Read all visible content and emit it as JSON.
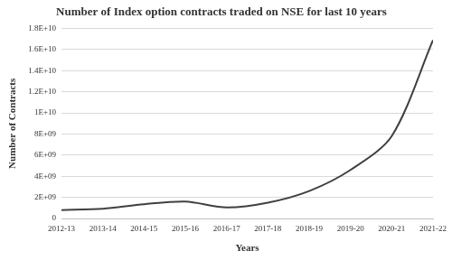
{
  "chart_data": {
    "type": "line",
    "title": "Number of Index option contracts traded on NSE for last 10 years",
    "x_label": "Years",
    "y_label": "Number of Contracts",
    "categories": [
      "2012-13",
      "2013-14",
      "2014-15",
      "2015-16",
      "2016-17",
      "2017-18",
      "2018-19",
      "2019-20",
      "2020-21",
      "2021-22"
    ],
    "values": [
      800000000,
      920000000,
      1350000000,
      1600000000,
      1050000000,
      1500000000,
      2600000000,
      4600000000,
      7800000000,
      16900000000
    ],
    "color": "#404040",
    "marker": "none",
    "line_style": "solid",
    "ylim": [
      0,
      18000000000
    ],
    "yticks": [
      0,
      {
        "value": 2000000000,
        "label": "2E+09"
      },
      {
        "value": 4000000000,
        "label": "4E+09"
      },
      {
        "value": 6000000000,
        "label": "6E+09"
      },
      {
        "value": 8000000000,
        "label": "8E+09"
      },
      {
        "value": 10000000000,
        "label": "1E+10"
      },
      {
        "value": 12000000000,
        "label": "1.2E+10"
      },
      {
        "value": 14000000000,
        "label": "1.4E+10"
      },
      {
        "value": 16000000000,
        "label": "1.6E+10"
      },
      {
        "value": 18000000000,
        "label": "1.8E+10"
      }
    ],
    "grid": true
  }
}
